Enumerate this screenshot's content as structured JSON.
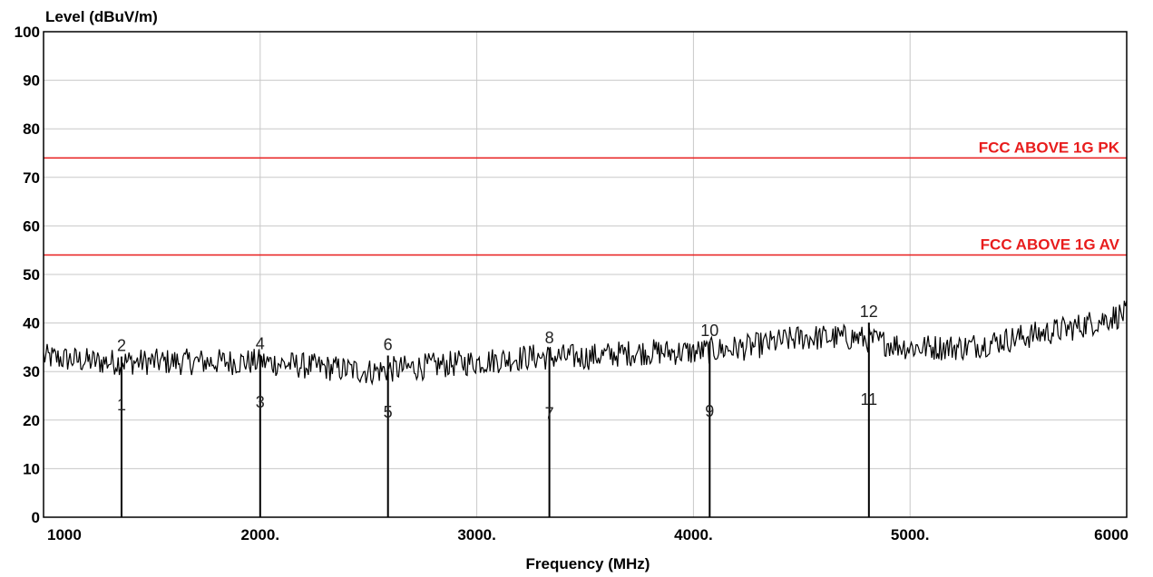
{
  "chart_data": {
    "type": "line",
    "ylabel": "Level (dBuV/m)",
    "xlabel": "Frequency (MHz)",
    "xlim": [
      1000,
      6000
    ],
    "ylim": [
      0,
      100
    ],
    "grid": true,
    "x_ticks": [
      1000,
      2000,
      3000,
      4000,
      5000,
      6000
    ],
    "x_tick_labels": [
      "1000",
      "2000.",
      "3000.",
      "4000.",
      "5000.",
      "6000"
    ],
    "y_ticks": [
      0,
      10,
      20,
      30,
      40,
      50,
      60,
      70,
      80,
      90,
      100
    ],
    "y_tick_labels": [
      "0",
      "10",
      "20",
      "30",
      "40",
      "50",
      "60",
      "70",
      "80",
      "90",
      "100"
    ],
    "colors": {
      "trace": "#000000",
      "limit": "#e81c1c",
      "grid": "#c8c8c8"
    },
    "limit_lines": [
      {
        "name": "FCC ABOVE 1G PK",
        "value": 74
      },
      {
        "name": "FCC ABOVE 1G AV",
        "value": 54
      }
    ],
    "series": [
      {
        "x": [
          1000,
          1250,
          1500,
          1750,
          2000,
          2250,
          2500,
          2750,
          3000,
          3250,
          3500,
          3750,
          4000,
          4250,
          4500,
          4750,
          5000,
          5250,
          5500,
          5750,
          6000
        ],
        "values": [
          33,
          32,
          32,
          32,
          32,
          31,
          30,
          31,
          32,
          33,
          33,
          34,
          34,
          35,
          37,
          37,
          35,
          35,
          37,
          39,
          42
        ]
      }
    ],
    "markers": [
      {
        "label": "1",
        "x": 1360,
        "y": 20.9
      },
      {
        "label": "2",
        "x": 1360,
        "y": 33.1
      },
      {
        "label": "3",
        "x": 2000,
        "y": 21.5
      },
      {
        "label": "4",
        "x": 2000,
        "y": 33.5
      },
      {
        "label": "5",
        "x": 2590,
        "y": 19.4
      },
      {
        "label": "6",
        "x": 2590,
        "y": 33.3
      },
      {
        "label": "7",
        "x": 3335,
        "y": 19.1
      },
      {
        "label": "8",
        "x": 3335,
        "y": 34.7
      },
      {
        "label": "9",
        "x": 4075,
        "y": 19.6
      },
      {
        "label": "10",
        "x": 4075,
        "y": 36.2
      },
      {
        "label": "11",
        "x": 4810,
        "y": 22.0
      },
      {
        "label": "12",
        "x": 4810,
        "y": 40.1
      }
    ]
  }
}
